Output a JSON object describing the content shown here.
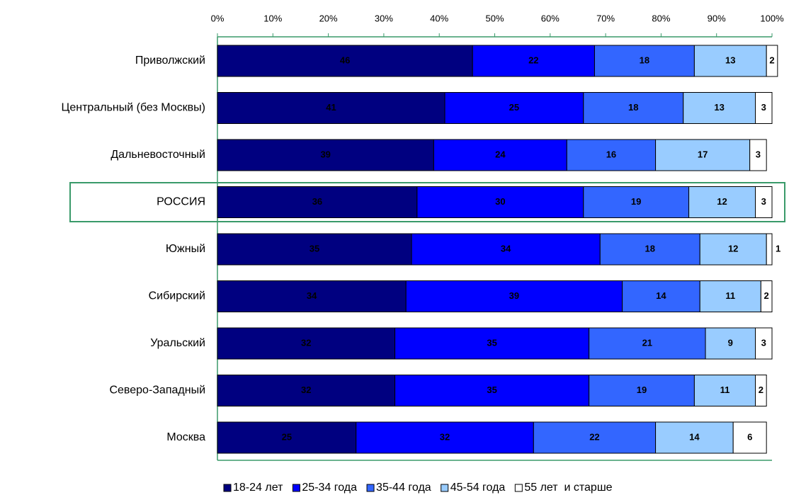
{
  "chart_data": {
    "type": "bar",
    "orientation": "horizontal",
    "stacked": true,
    "categories": [
      "Приволжский",
      "Центральный (без Москвы)",
      "Дальневосточный",
      "РОССИЯ",
      "Южный",
      "Сибирский",
      "Уральский",
      "Северо-Западный",
      "Москва"
    ],
    "series": [
      {
        "name": "18-24 лет",
        "color": "#000080",
        "label_color": "#ffffff",
        "values": [
          46,
          41,
          39,
          36,
          35,
          34,
          32,
          32,
          25
        ]
      },
      {
        "name": "25-34 года",
        "color": "#0000ff",
        "label_color": "#ffffff",
        "values": [
          22,
          25,
          24,
          30,
          34,
          39,
          35,
          35,
          32
        ]
      },
      {
        "name": "35-44 года",
        "color": "#3366ff",
        "label_color": "#000000",
        "values": [
          18,
          18,
          16,
          19,
          18,
          14,
          21,
          19,
          22
        ]
      },
      {
        "name": "45-54 года",
        "color": "#99ccff",
        "label_color": "#000000",
        "values": [
          13,
          13,
          17,
          12,
          12,
          11,
          9,
          11,
          14
        ]
      },
      {
        "name": "55 лет  и старше",
        "color": "#ffffff",
        "label_color": "#000000",
        "values": [
          2,
          3,
          3,
          3,
          1,
          2,
          3,
          2,
          6
        ]
      }
    ],
    "xlim": [
      0,
      100
    ],
    "xticks": [
      {
        "value": 0,
        "label": "0%"
      },
      {
        "value": 10,
        "label": "10%"
      },
      {
        "value": 20,
        "label": "20%"
      },
      {
        "value": 30,
        "label": "30%"
      },
      {
        "value": 40,
        "label": "40%"
      },
      {
        "value": 50,
        "label": "50%"
      },
      {
        "value": 60,
        "label": "60%"
      },
      {
        "value": 70,
        "label": "70%"
      },
      {
        "value": 80,
        "label": "80%"
      },
      {
        "value": 90,
        "label": "90%"
      },
      {
        "value": 100,
        "label": "100%"
      }
    ],
    "legend": "bottom"
  }
}
